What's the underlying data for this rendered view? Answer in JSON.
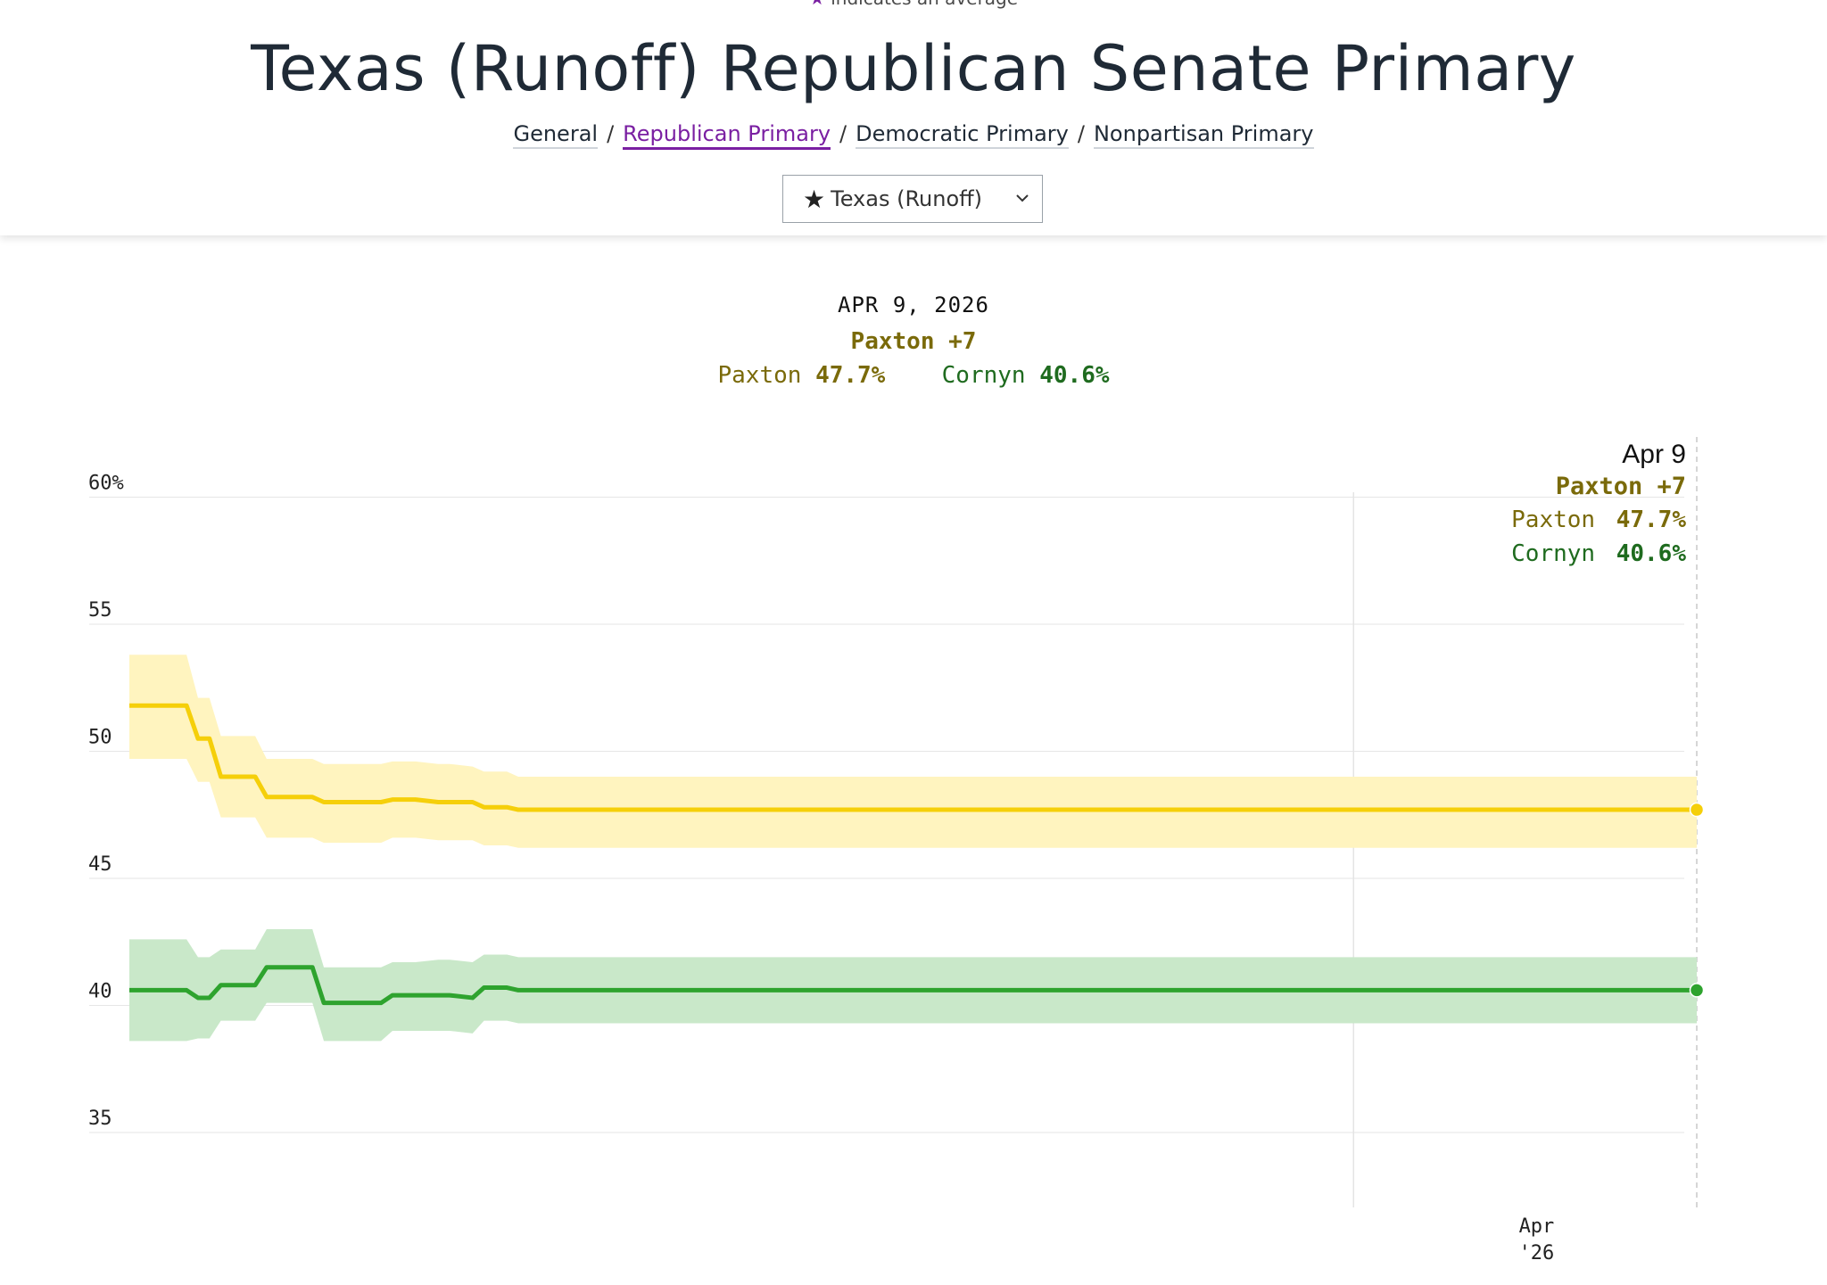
{
  "header": {
    "average_note_star": "★",
    "average_note": "indicates an average",
    "title": "Texas (Runoff) Republican Senate Primary",
    "breadcrumb": [
      "General",
      "Republican Primary",
      "Democratic Primary",
      "Nonpartisan Primary"
    ],
    "breadcrumb_active": "Republican Primary",
    "select": {
      "star": "★",
      "value": "Texas (Runoff)"
    }
  },
  "summary": {
    "date": "APR 9, 2026",
    "lead": "Paxton +7",
    "candidates": [
      {
        "name": "Paxton",
        "value": "47.7%"
      },
      {
        "name": "Cornyn",
        "value": "40.6%"
      }
    ]
  },
  "colors": {
    "paxton_line": "#f5cf0a",
    "paxton_band": "#fff4bf",
    "paxton_text": "#7a6a0a",
    "cornyn_line": "#2ea32e",
    "cornyn_band": "#c9e8c9",
    "cornyn_text": "#1f6b1f"
  },
  "chart_data": {
    "type": "line",
    "title": "Texas (Runoff) Republican Senate Primary",
    "ylabel": "",
    "ylim": [
      32,
      62
    ],
    "yticks": [
      35,
      40,
      45,
      50,
      55,
      60
    ],
    "ytick_labels": [
      "35",
      "40",
      "45",
      "50",
      "55",
      "60%"
    ],
    "x_index": [
      0,
      5,
      6,
      7,
      8,
      11,
      12,
      16,
      17,
      21,
      22,
      23,
      25,
      27,
      28,
      30,
      31,
      33,
      34,
      36,
      37,
      38,
      40,
      41,
      42,
      44,
      45,
      46,
      47,
      49,
      50,
      52,
      53,
      55,
      56,
      57,
      58,
      60,
      61,
      63,
      64,
      65,
      67,
      68,
      70,
      72,
      74,
      75,
      76,
      78,
      79,
      80,
      82,
      83,
      85,
      86,
      88,
      89,
      90,
      91,
      93,
      94,
      95,
      97,
      98,
      100,
      101,
      102,
      104,
      105,
      106,
      107,
      109,
      110,
      111,
      113,
      114,
      116,
      117,
      119,
      120,
      121,
      123,
      124,
      126,
      127,
      129,
      130,
      131,
      132,
      134,
      135,
      137
    ],
    "x_range": [
      0,
      137
    ],
    "x_ticks": [
      {
        "x": 123,
        "label": [
          "Apr",
          "'26"
        ]
      }
    ],
    "gridline_x": 107,
    "series": [
      {
        "name": "Paxton",
        "values": [
          51.8,
          51.8,
          50.5,
          50.5,
          49.0,
          49.0,
          48.2,
          48.2,
          48.0,
          48.0,
          48.0,
          48.1,
          48.1,
          48.0,
          48.0,
          48.0,
          47.8,
          47.8,
          47.7,
          47.7,
          47.7,
          47.7,
          47.7,
          47.7,
          47.7,
          47.7,
          47.7,
          47.7,
          47.7,
          47.7,
          47.7,
          47.7,
          47.7,
          47.7,
          47.7,
          47.7,
          47.7,
          47.7,
          47.7,
          47.7,
          47.7,
          47.7,
          47.7,
          47.7,
          47.7,
          47.7,
          47.7,
          47.7,
          47.7,
          47.7,
          47.7,
          47.7,
          47.7,
          47.7,
          47.7,
          47.7,
          47.7,
          47.7,
          47.7,
          47.7,
          47.7,
          47.7,
          47.7,
          47.7,
          47.7,
          47.7,
          47.7,
          47.7,
          47.7,
          47.7,
          47.7,
          47.7,
          47.7,
          47.7,
          47.7,
          47.7,
          47.7,
          47.7,
          47.7,
          47.7,
          47.7,
          47.7,
          47.7,
          47.7,
          47.7,
          47.7,
          47.7,
          47.7,
          47.7,
          47.7,
          47.7,
          47.7,
          47.7
        ],
        "upper": [
          53.8,
          53.8,
          52.1,
          52.1,
          50.6,
          50.6,
          49.7,
          49.7,
          49.5,
          49.5,
          49.5,
          49.6,
          49.6,
          49.5,
          49.5,
          49.4,
          49.2,
          49.2,
          49.0,
          49.0,
          49.0,
          49.0,
          49.0,
          49.0,
          49.0,
          49.0,
          49.0,
          49.0,
          49.0,
          49.0,
          49.0,
          49.0,
          49.0,
          49.0,
          49.0,
          49.0,
          49.0,
          49.0,
          49.0,
          49.0,
          49.0,
          49.0,
          49.0,
          49.0,
          49.0,
          49.0,
          49.0,
          49.0,
          49.0,
          49.0,
          49.0,
          49.0,
          49.0,
          49.0,
          49.0,
          49.0,
          49.0,
          49.0,
          49.0,
          49.0,
          49.0,
          49.0,
          49.0,
          49.0,
          49.0,
          49.0,
          49.0,
          49.0,
          49.0,
          49.0,
          49.0,
          49.0,
          49.0,
          49.0,
          49.0,
          49.0,
          49.0,
          49.0,
          49.0,
          49.0,
          49.0,
          49.0,
          49.0,
          49.0,
          49.0,
          49.0,
          49.0,
          49.0,
          49.0,
          49.0,
          49.0,
          49.0,
          49.0
        ],
        "lower": [
          49.7,
          49.7,
          48.8,
          48.8,
          47.4,
          47.4,
          46.6,
          46.6,
          46.4,
          46.4,
          46.4,
          46.6,
          46.6,
          46.5,
          46.5,
          46.5,
          46.3,
          46.3,
          46.2,
          46.2,
          46.2,
          46.2,
          46.2,
          46.2,
          46.2,
          46.2,
          46.2,
          46.2,
          46.2,
          46.2,
          46.2,
          46.2,
          46.2,
          46.2,
          46.2,
          46.2,
          46.2,
          46.2,
          46.2,
          46.2,
          46.2,
          46.2,
          46.2,
          46.2,
          46.2,
          46.2,
          46.2,
          46.2,
          46.2,
          46.2,
          46.2,
          46.2,
          46.2,
          46.2,
          46.2,
          46.2,
          46.2,
          46.2,
          46.2,
          46.2,
          46.2,
          46.2,
          46.2,
          46.2,
          46.2,
          46.2,
          46.2,
          46.2,
          46.2,
          46.2,
          46.2,
          46.2,
          46.2,
          46.2,
          46.2,
          46.2,
          46.2,
          46.2,
          46.2,
          46.2,
          46.2,
          46.2,
          46.2,
          46.2,
          46.2,
          46.2,
          46.2,
          46.2,
          46.2,
          46.2,
          46.2,
          46.2,
          46.2
        ]
      },
      {
        "name": "Cornyn",
        "values": [
          40.6,
          40.6,
          40.3,
          40.3,
          40.8,
          40.8,
          41.5,
          41.5,
          40.1,
          40.1,
          40.1,
          40.4,
          40.4,
          40.4,
          40.4,
          40.3,
          40.7,
          40.7,
          40.6,
          40.6,
          40.6,
          40.6,
          40.6,
          40.6,
          40.6,
          40.6,
          40.6,
          40.6,
          40.6,
          40.6,
          40.6,
          40.6,
          40.6,
          40.6,
          40.6,
          40.6,
          40.6,
          40.6,
          40.6,
          40.6,
          40.6,
          40.6,
          40.6,
          40.6,
          40.6,
          40.6,
          40.6,
          40.6,
          40.6,
          40.6,
          40.6,
          40.6,
          40.6,
          40.6,
          40.6,
          40.6,
          40.6,
          40.6,
          40.6,
          40.6,
          40.6,
          40.6,
          40.6,
          40.6,
          40.6,
          40.6,
          40.6,
          40.6,
          40.6,
          40.6,
          40.6,
          40.6,
          40.6,
          40.6,
          40.6,
          40.6,
          40.6,
          40.6,
          40.6,
          40.6,
          40.6,
          40.6,
          40.6,
          40.6,
          40.6,
          40.6,
          40.6,
          40.6,
          40.6,
          40.6,
          40.6,
          40.6,
          40.6
        ],
        "upper": [
          42.6,
          42.6,
          41.9,
          41.9,
          42.2,
          42.2,
          43.0,
          43.0,
          41.5,
          41.5,
          41.5,
          41.7,
          41.7,
          41.8,
          41.8,
          41.7,
          42.0,
          42.0,
          41.9,
          41.9,
          41.9,
          41.9,
          41.9,
          41.9,
          41.9,
          41.9,
          41.9,
          41.9,
          41.9,
          41.9,
          41.9,
          41.9,
          41.9,
          41.9,
          41.9,
          41.9,
          41.9,
          41.9,
          41.9,
          41.9,
          41.9,
          41.9,
          41.9,
          41.9,
          41.9,
          41.9,
          41.9,
          41.9,
          41.9,
          41.9,
          41.9,
          41.9,
          41.9,
          41.9,
          41.9,
          41.9,
          41.9,
          41.9,
          41.9,
          41.9,
          41.9,
          41.9,
          41.9,
          41.9,
          41.9,
          41.9,
          41.9,
          41.9,
          41.9,
          41.9,
          41.9,
          41.9,
          41.9,
          41.9,
          41.9,
          41.9,
          41.9,
          41.9,
          41.9,
          41.9,
          41.9,
          41.9,
          41.9,
          41.9,
          41.9,
          41.9,
          41.9,
          41.9,
          41.9,
          41.9,
          41.9,
          41.9,
          41.9
        ],
        "lower": [
          38.6,
          38.6,
          38.7,
          38.7,
          39.4,
          39.4,
          40.1,
          40.1,
          38.6,
          38.6,
          38.6,
          39.0,
          39.0,
          39.0,
          39.0,
          38.9,
          39.4,
          39.4,
          39.3,
          39.3,
          39.3,
          39.3,
          39.3,
          39.3,
          39.3,
          39.3,
          39.3,
          39.3,
          39.3,
          39.3,
          39.3,
          39.3,
          39.3,
          39.3,
          39.3,
          39.3,
          39.3,
          39.3,
          39.3,
          39.3,
          39.3,
          39.3,
          39.3,
          39.3,
          39.3,
          39.3,
          39.3,
          39.3,
          39.3,
          39.3,
          39.3,
          39.3,
          39.3,
          39.3,
          39.3,
          39.3,
          39.3,
          39.3,
          39.3,
          39.3,
          39.3,
          39.3,
          39.3,
          39.3,
          39.3,
          39.3,
          39.3,
          39.3,
          39.3,
          39.3,
          39.3,
          39.3,
          39.3,
          39.3,
          39.3,
          39.3,
          39.3,
          39.3,
          39.3,
          39.3,
          39.3,
          39.3,
          39.3,
          39.3,
          39.3,
          39.3,
          39.3,
          39.3,
          39.3,
          39.3,
          39.3,
          39.3,
          39.3
        ]
      }
    ],
    "tooltip": {
      "date": "Apr 9",
      "lead": "Paxton +7",
      "rows": [
        {
          "name": "Paxton",
          "value": "47.7%"
        },
        {
          "name": "Cornyn",
          "value": "40.6%"
        }
      ]
    }
  }
}
